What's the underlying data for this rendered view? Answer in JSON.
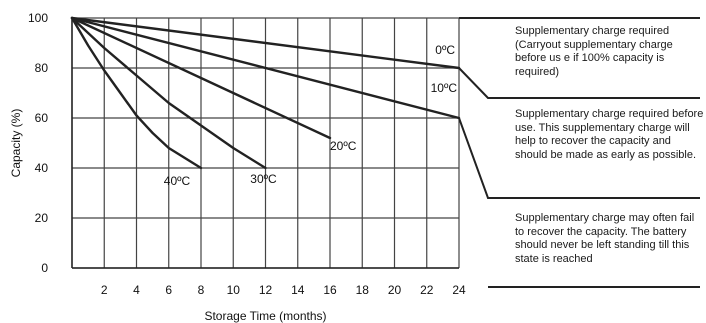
{
  "chart_data": {
    "type": "line",
    "xlabel": "Storage Time (months)",
    "ylabel": "Capacity (%)",
    "xlim": [
      0,
      24
    ],
    "ylim": [
      0,
      100
    ],
    "x_ticks": [
      "2",
      "4",
      "6",
      "8",
      "10",
      "12",
      "14",
      "16",
      "18",
      "20",
      "22",
      "24"
    ],
    "y_ticks": [
      "0",
      "20",
      "40",
      "60",
      "80",
      "100"
    ],
    "grid": true,
    "series": [
      {
        "name": "0ºC",
        "x": [
          0,
          24
        ],
        "y": [
          100,
          80
        ]
      },
      {
        "name": "10ºC",
        "x": [
          0,
          24
        ],
        "y": [
          100,
          60
        ]
      },
      {
        "name": "20ºC",
        "x": [
          0,
          16
        ],
        "y": [
          100,
          52
        ]
      },
      {
        "name": "30ºC",
        "x": [
          0,
          2,
          4,
          6,
          8,
          10,
          12
        ],
        "y": [
          100,
          88,
          77,
          66,
          57,
          48,
          40
        ]
      },
      {
        "name": "40ºC",
        "x": [
          0,
          1,
          2,
          3,
          4,
          5,
          6,
          8
        ],
        "y": [
          100,
          89,
          79,
          70,
          61,
          54,
          48,
          40
        ]
      }
    ],
    "annotations": [
      "Supplementary charge required (Carryout supplementary charge before us e if 100%  capacity is required)",
      "Supplementary charge required before use. This supplementary charge will help to recover the capacity and should be made as early as possible.",
      "Supplementary charge may often fail to recover the capacity. The battery should never be left standing till this state is reached"
    ]
  }
}
